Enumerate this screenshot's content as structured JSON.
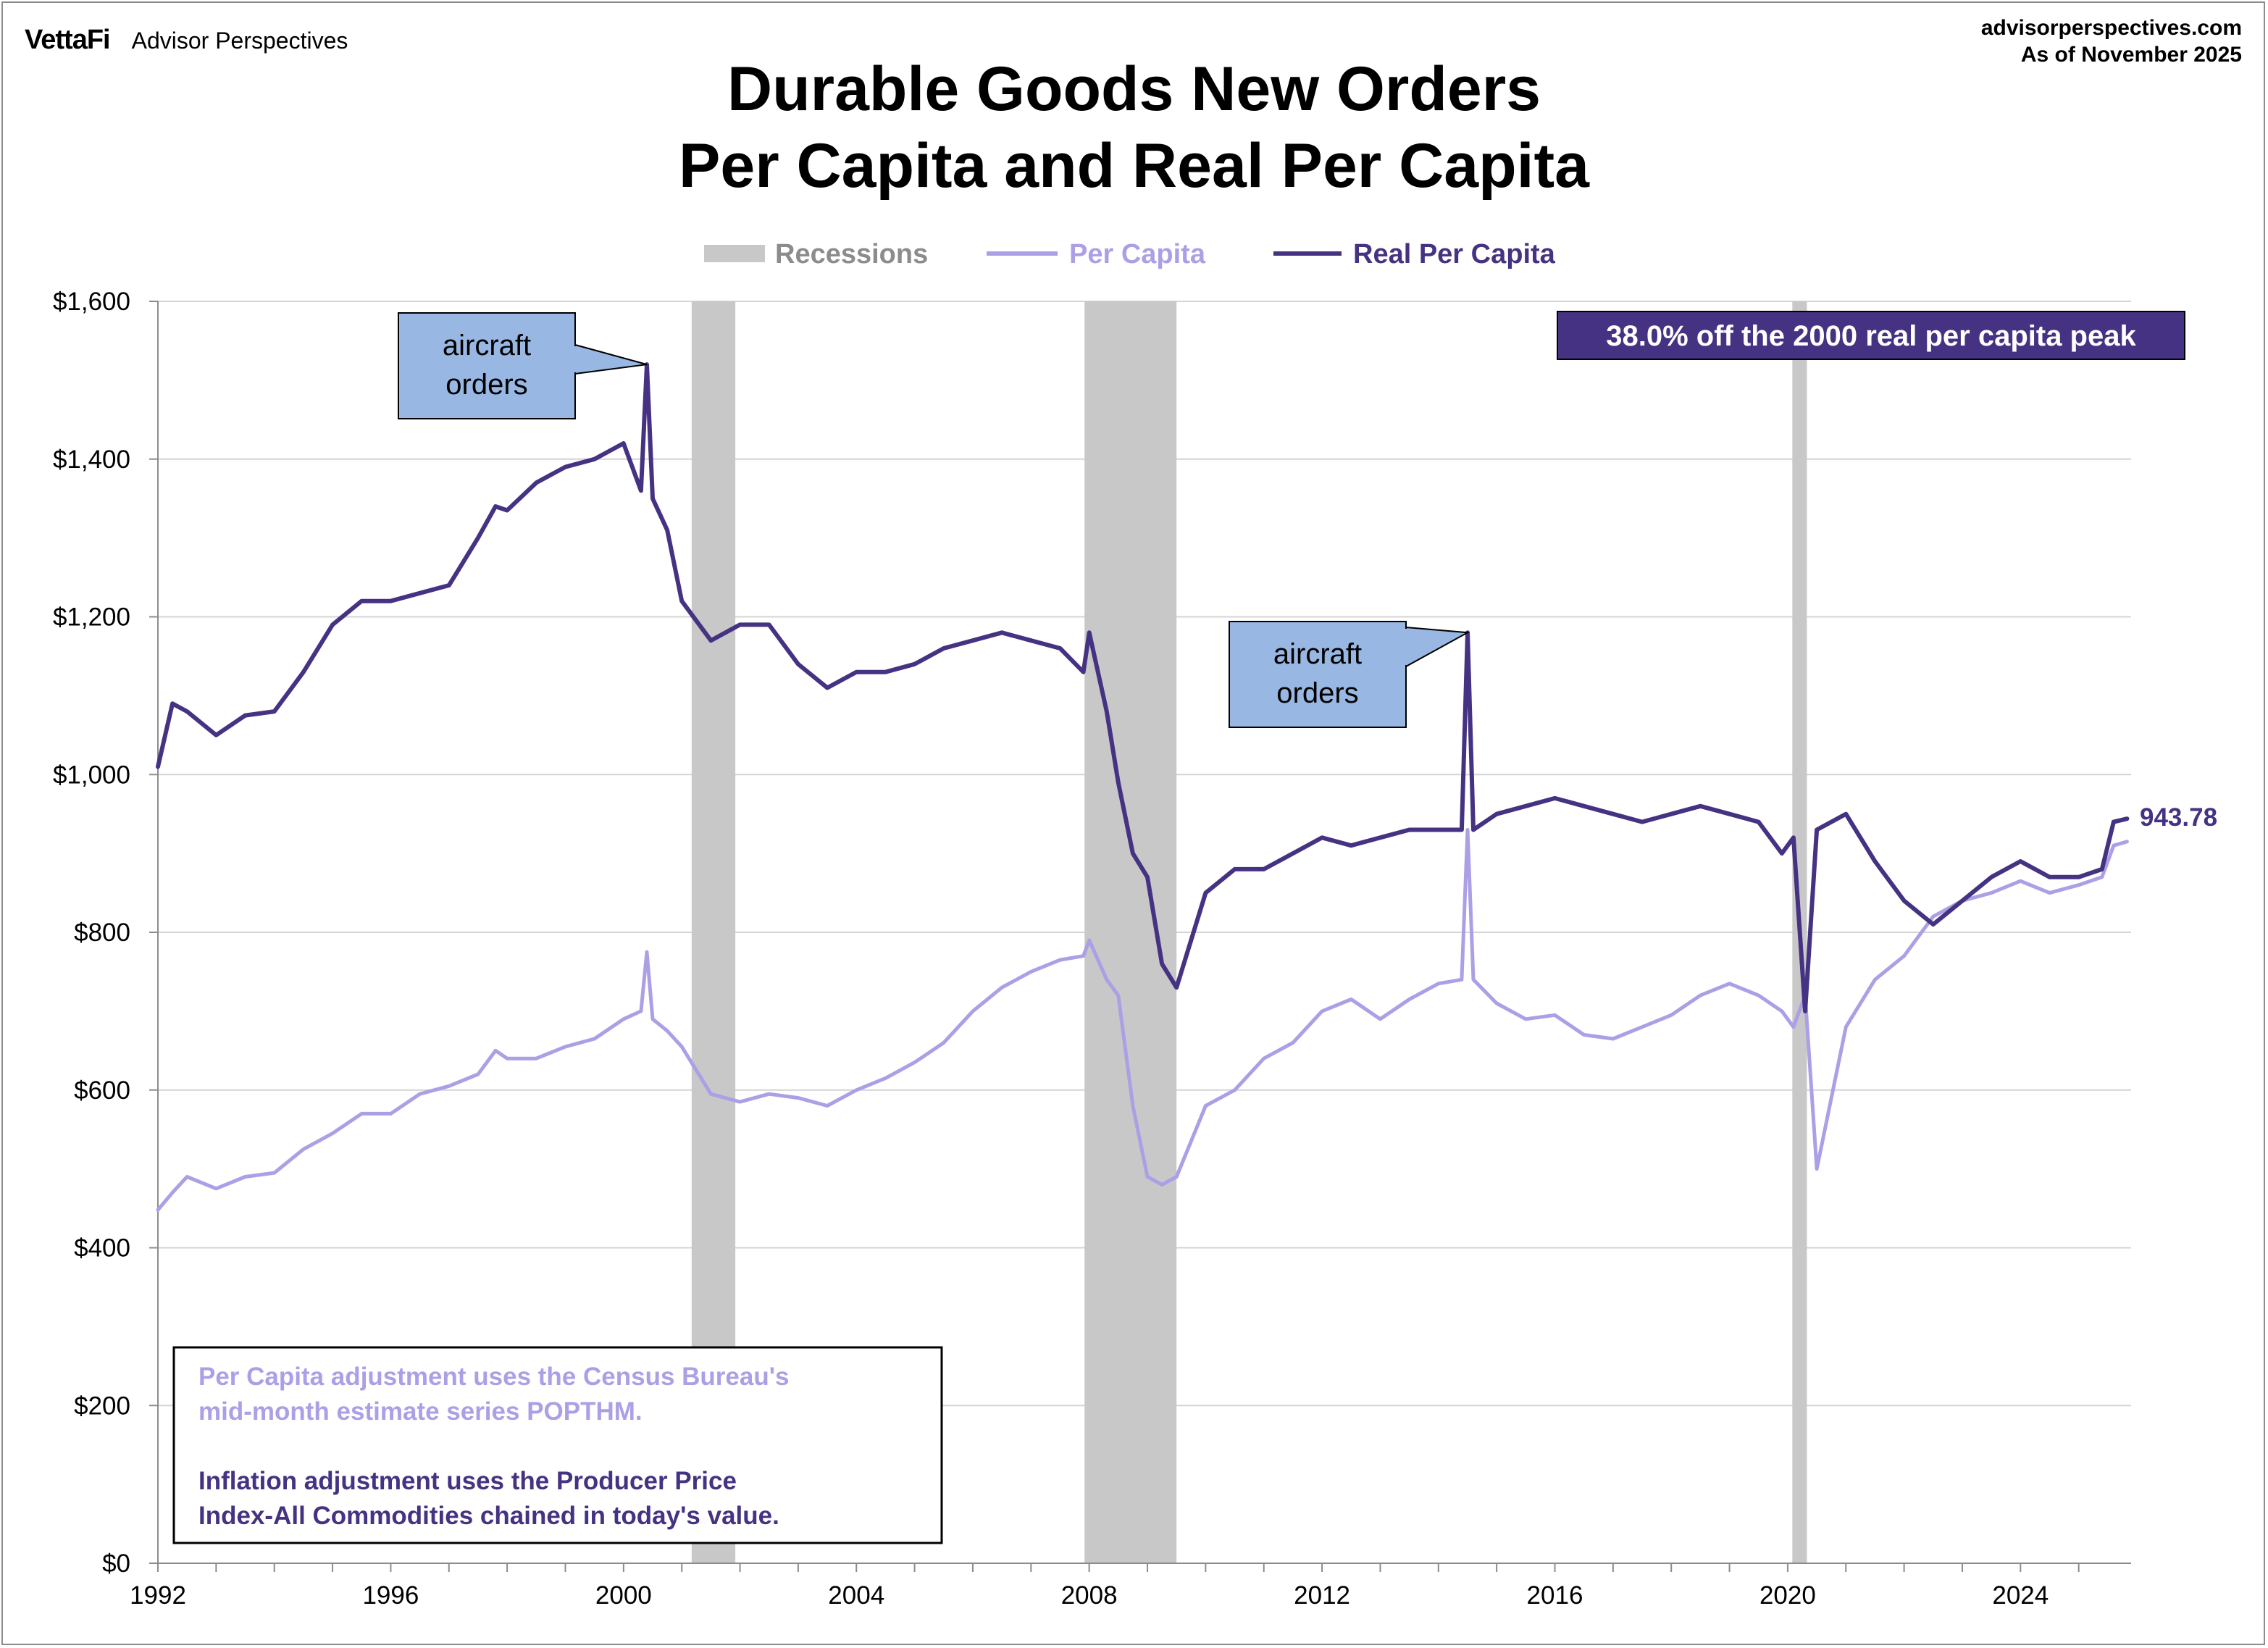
{
  "header": {
    "brand": "VettaFi",
    "brand_sub": "Advisor Perspectives",
    "site": "advisorperspectives.com",
    "as_of": "As of November  2025"
  },
  "colors": {
    "per_capita": "#ad9fe6",
    "real_per_capita": "#463282",
    "recession": "#c8c8c8",
    "callout_fill": "#98b7e3",
    "grid": "#d4d4d4"
  },
  "chart_data": {
    "type": "line",
    "title": [
      "Durable Goods New Orders",
      "Per Capita and Real Per Capita"
    ],
    "legend": [
      "Recessions",
      "Per Capita",
      "Real Per Capita"
    ],
    "legend_position": "top-center",
    "grid": true,
    "xlim": [
      1992,
      2025.9
    ],
    "ylim": [
      0,
      1600
    ],
    "x_ticks": [
      "1992",
      "1996",
      "2000",
      "2004",
      "2008",
      "2012",
      "2016",
      "2020",
      "2024"
    ],
    "y_ticks": [
      "$0",
      "$200",
      "$400",
      "$600",
      "$800",
      "$1,000",
      "$1,200",
      "$1,400",
      "$1,600"
    ],
    "recessions": [
      [
        2001.17,
        2001.92
      ],
      [
        2007.92,
        2009.5
      ],
      [
        2020.08,
        2020.33
      ]
    ],
    "series": [
      {
        "name": "Per Capita",
        "x": [
          1992.0,
          1992.25,
          1992.5,
          1993.0,
          1993.5,
          1994.0,
          1994.5,
          1995.0,
          1995.5,
          1996.0,
          1996.5,
          1997.0,
          1997.5,
          1997.8,
          1998.0,
          1998.5,
          1999.0,
          1999.5,
          2000.0,
          2000.3,
          2000.4,
          2000.5,
          2000.75,
          2001.0,
          2001.5,
          2002.0,
          2002.5,
          2003.0,
          2003.5,
          2004.0,
          2004.5,
          2005.0,
          2005.5,
          2006.0,
          2006.5,
          2007.0,
          2007.5,
          2007.9,
          2008.0,
          2008.3,
          2008.5,
          2008.75,
          2009.0,
          2009.25,
          2009.5,
          2010.0,
          2010.5,
          2011.0,
          2011.5,
          2012.0,
          2012.5,
          2013.0,
          2013.5,
          2014.0,
          2014.4,
          2014.5,
          2014.6,
          2015.0,
          2015.5,
          2016.0,
          2016.5,
          2017.0,
          2017.5,
          2018.0,
          2018.5,
          2019.0,
          2019.5,
          2019.9,
          2020.1,
          2020.3,
          2020.5,
          2021.0,
          2021.5,
          2022.0,
          2022.5,
          2023.0,
          2023.5,
          2024.0,
          2024.5,
          2025.0,
          2025.4,
          2025.6,
          2025.83
        ],
        "values": [
          448,
          470,
          490,
          475,
          490,
          495,
          525,
          545,
          570,
          570,
          595,
          605,
          620,
          650,
          640,
          640,
          655,
          665,
          690,
          700,
          775,
          690,
          675,
          655,
          595,
          585,
          595,
          590,
          580,
          600,
          615,
          635,
          660,
          700,
          730,
          750,
          765,
          770,
          790,
          740,
          720,
          580,
          490,
          480,
          490,
          580,
          600,
          640,
          660,
          700,
          715,
          690,
          715,
          735,
          740,
          930,
          740,
          710,
          690,
          695,
          670,
          665,
          680,
          695,
          720,
          735,
          720,
          700,
          680,
          720,
          500,
          680,
          740,
          770,
          820,
          840,
          850,
          865,
          850,
          860,
          870,
          910,
          915
        ]
      },
      {
        "name": "Real Per Capita",
        "x": [
          1992.0,
          1992.25,
          1992.5,
          1993.0,
          1993.5,
          1994.0,
          1994.5,
          1995.0,
          1995.5,
          1996.0,
          1996.5,
          1997.0,
          1997.5,
          1997.8,
          1998.0,
          1998.5,
          1999.0,
          1999.5,
          2000.0,
          2000.3,
          2000.4,
          2000.5,
          2000.75,
          2001.0,
          2001.5,
          2002.0,
          2002.5,
          2003.0,
          2003.5,
          2004.0,
          2004.5,
          2005.0,
          2005.5,
          2006.0,
          2006.5,
          2007.0,
          2007.5,
          2007.9,
          2008.0,
          2008.3,
          2008.5,
          2008.75,
          2009.0,
          2009.25,
          2009.5,
          2010.0,
          2010.5,
          2011.0,
          2011.5,
          2012.0,
          2012.5,
          2013.0,
          2013.5,
          2014.0,
          2014.4,
          2014.5,
          2014.6,
          2015.0,
          2015.5,
          2016.0,
          2016.5,
          2017.0,
          2017.5,
          2018.0,
          2018.5,
          2019.0,
          2019.5,
          2019.9,
          2020.1,
          2020.3,
          2020.5,
          2021.0,
          2021.5,
          2022.0,
          2022.5,
          2023.0,
          2023.5,
          2024.0,
          2024.5,
          2025.0,
          2025.4,
          2025.6,
          2025.83
        ],
        "values": [
          1010,
          1090,
          1080,
          1050,
          1075,
          1080,
          1130,
          1190,
          1220,
          1220,
          1230,
          1240,
          1300,
          1340,
          1335,
          1370,
          1390,
          1400,
          1420,
          1360,
          1520,
          1350,
          1310,
          1220,
          1170,
          1190,
          1190,
          1140,
          1110,
          1130,
          1130,
          1140,
          1160,
          1170,
          1180,
          1170,
          1160,
          1130,
          1180,
          1080,
          990,
          900,
          870,
          760,
          730,
          850,
          880,
          880,
          900,
          920,
          910,
          920,
          930,
          930,
          930,
          1180,
          930,
          950,
          960,
          970,
          960,
          950,
          940,
          950,
          960,
          950,
          940,
          900,
          920,
          700,
          930,
          950,
          890,
          840,
          810,
          840,
          870,
          890,
          870,
          870,
          880,
          940,
          944
        ]
      }
    ],
    "annotations": [
      {
        "text": [
          "aircraft",
          "orders"
        ],
        "x": 2000.4,
        "y": 1520
      },
      {
        "text": [
          "aircraft",
          "orders"
        ],
        "x": 2014.5,
        "y": 1180
      }
    ],
    "end_label": "943.78",
    "peak_note": "38.0% off the 2000 real per capita peak",
    "notes": {
      "per_capita": [
        "Per Capita adjustment uses the Census Bureau's",
        "mid-month estimate series POPTHM."
      ],
      "inflation": [
        "Inflation adjustment uses the Producer Price",
        "Index-All Commodities chained in today's value."
      ]
    }
  }
}
